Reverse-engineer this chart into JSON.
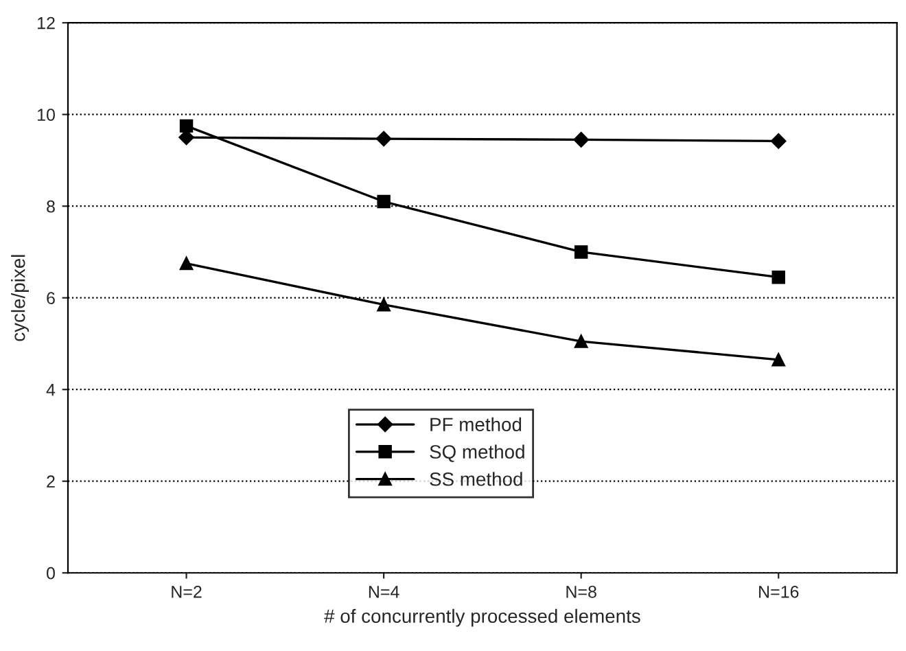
{
  "chart_data": {
    "type": "line",
    "xlabel": "# of concurrently processed elements",
    "ylabel": "cycle/pixel",
    "categories": [
      "N=2",
      "N=4",
      "N=8",
      "N=16"
    ],
    "series": [
      {
        "name": "PF method",
        "color": "#000000",
        "marker": "diamond",
        "values": [
          9.5,
          9.47,
          9.45,
          9.42
        ]
      },
      {
        "name": "SQ method",
        "color": "#000000",
        "marker": "square",
        "values": [
          9.75,
          8.1,
          7.0,
          6.45
        ]
      },
      {
        "name": "SS method",
        "color": "#000000",
        "marker": "triangle",
        "values": [
          6.75,
          5.85,
          5.05,
          4.65
        ]
      }
    ],
    "ylim": [
      0,
      12
    ],
    "yticks": [
      0,
      2,
      4,
      6,
      8,
      10,
      12
    ],
    "grid": "y",
    "legend": "bottom",
    "line_style": "solid"
  }
}
